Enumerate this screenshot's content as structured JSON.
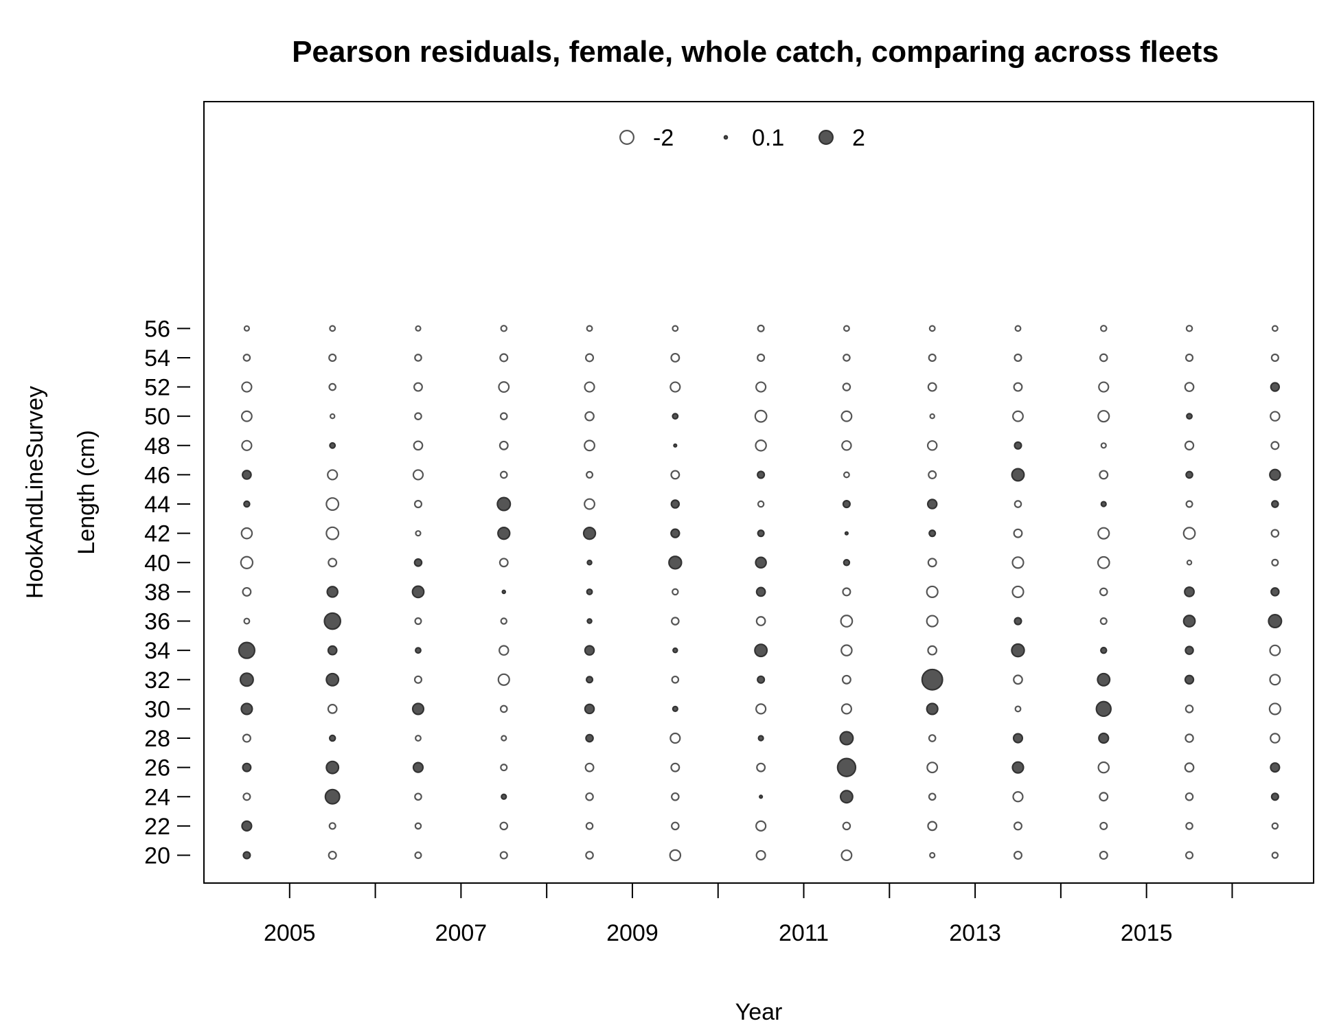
{
  "chart_data": {
    "type": "scatter",
    "title": "Pearson residuals, female, whole catch, comparing across fleets",
    "xlabel": "Year",
    "ylabel_lines": [
      "HookAndLineSurvey",
      "Length (cm)"
    ],
    "x_ticks": [
      2005,
      2006,
      2007,
      2008,
      2009,
      2010,
      2011,
      2012,
      2013,
      2014,
      2015,
      2016
    ],
    "x_tick_labels": [
      2005,
      2007,
      2009,
      2011,
      2013,
      2015
    ],
    "y_ticks": [
      20,
      22,
      24,
      26,
      28,
      30,
      32,
      34,
      36,
      38,
      40,
      42,
      44,
      46,
      48,
      50,
      52,
      54,
      56
    ],
    "xlim": [
      2004,
      2016.95
    ],
    "ylim": [
      18.1,
      71.5
    ],
    "legend": {
      "placement": "top-center",
      "entries": [
        {
          "label": "-2",
          "value": -2
        },
        {
          "label": "0.1",
          "value": 0.1
        },
        {
          "label": "2",
          "value": 2
        }
      ]
    },
    "colors": {
      "negative_fill": "#ffffff",
      "negative_stroke": "#555555",
      "positive_fill": "#555555",
      "positive_stroke": "#333333"
    },
    "size_scale": "bubble area proportional to |residual|",
    "series": [
      {
        "x": 2004.5,
        "lengths": [
          20,
          22,
          24,
          26,
          28,
          30,
          32,
          34,
          36,
          38,
          40,
          42,
          44,
          46,
          48,
          50,
          52,
          54,
          56
        ],
        "residuals": [
          0.5,
          1.0,
          -0.5,
          0.7,
          -0.6,
          1.3,
          1.8,
          2.7,
          -0.3,
          -0.7,
          -1.5,
          -1.2,
          0.35,
          0.8,
          -1.0,
          -1.1,
          -1.0,
          -0.45,
          -0.25
        ]
      },
      {
        "x": 2005.5,
        "lengths": [
          20,
          22,
          24,
          26,
          28,
          30,
          32,
          34,
          36,
          38,
          40,
          42,
          44,
          46,
          48,
          50,
          52,
          54,
          56
        ],
        "residuals": [
          -0.6,
          -0.4,
          2.2,
          1.6,
          0.35,
          -0.8,
          1.6,
          0.8,
          2.8,
          1.2,
          -0.7,
          -1.6,
          -1.6,
          -1.0,
          0.3,
          -0.2,
          -0.45,
          -0.5,
          -0.3
        ]
      },
      {
        "x": 2006.5,
        "lengths": [
          20,
          22,
          24,
          26,
          28,
          30,
          32,
          34,
          36,
          38,
          40,
          42,
          44,
          46,
          48,
          50,
          52,
          54,
          56
        ],
        "residuals": [
          -0.4,
          -0.35,
          -0.45,
          1.0,
          -0.3,
          1.3,
          -0.5,
          0.3,
          -0.4,
          1.4,
          0.55,
          -0.25,
          -0.5,
          -1.0,
          -0.8,
          -0.45,
          -0.7,
          -0.45,
          -0.25
        ]
      },
      {
        "x": 2007.5,
        "lengths": [
          20,
          22,
          24,
          26,
          28,
          30,
          32,
          34,
          36,
          38,
          40,
          42,
          44,
          46,
          48,
          50,
          52,
          54,
          56
        ],
        "residuals": [
          -0.5,
          -0.55,
          0.25,
          -0.4,
          -0.25,
          -0.45,
          -1.3,
          -0.9,
          -0.35,
          0.1,
          -0.7,
          1.5,
          1.8,
          -0.45,
          -0.7,
          -0.45,
          -1.1,
          -0.6,
          -0.35
        ]
      },
      {
        "x": 2008.5,
        "lengths": [
          20,
          22,
          24,
          26,
          28,
          30,
          32,
          34,
          36,
          38,
          40,
          42,
          44,
          46,
          48,
          50,
          52,
          54,
          56
        ],
        "residuals": [
          -0.55,
          -0.45,
          -0.55,
          -0.7,
          0.55,
          0.9,
          0.4,
          0.9,
          0.2,
          0.3,
          0.2,
          1.5,
          -1.1,
          -0.4,
          -1.1,
          -0.8,
          -1.0,
          -0.6,
          -0.3
        ]
      },
      {
        "x": 2009.5,
        "lengths": [
          20,
          22,
          24,
          26,
          28,
          30,
          32,
          34,
          36,
          38,
          40,
          42,
          44,
          46,
          48,
          50,
          52,
          54,
          56
        ],
        "residuals": [
          -1.2,
          -0.55,
          -0.55,
          -0.7,
          -1.0,
          0.25,
          -0.45,
          0.2,
          -0.55,
          -0.35,
          1.7,
          0.75,
          0.65,
          -0.7,
          0.08,
          0.3,
          -1.0,
          -0.7,
          -0.3
        ]
      },
      {
        "x": 2010.5,
        "lengths": [
          20,
          22,
          24,
          26,
          28,
          30,
          32,
          34,
          36,
          38,
          40,
          42,
          44,
          46,
          48,
          50,
          52,
          54,
          56
        ],
        "residuals": [
          -0.85,
          -1.0,
          0.08,
          -0.7,
          0.25,
          -1.0,
          0.5,
          1.6,
          -0.8,
          0.8,
          1.2,
          0.4,
          -0.35,
          0.5,
          -1.2,
          -1.4,
          -1.0,
          -0.5,
          -0.4
        ]
      },
      {
        "x": 2011.5,
        "lengths": [
          20,
          22,
          24,
          26,
          28,
          30,
          32,
          34,
          36,
          38,
          40,
          42,
          44,
          46,
          48,
          50,
          52,
          54,
          56
        ],
        "residuals": [
          -1.1,
          -0.55,
          1.6,
          3.5,
          1.8,
          -1.0,
          -0.7,
          -1.2,
          -1.4,
          -0.6,
          0.35,
          0.08,
          0.5,
          -0.3,
          -0.9,
          -1.1,
          -0.55,
          -0.45,
          -0.3
        ]
      },
      {
        "x": 2012.5,
        "lengths": [
          20,
          22,
          24,
          26,
          28,
          30,
          32,
          34,
          36,
          38,
          40,
          42,
          44,
          46,
          48,
          50,
          52,
          54,
          56
        ],
        "residuals": [
          -0.25,
          -0.8,
          -0.45,
          -1.1,
          -0.45,
          1.3,
          4.5,
          -0.8,
          -1.3,
          -1.3,
          -0.7,
          0.4,
          0.9,
          -0.6,
          -0.9,
          -0.2,
          -0.7,
          -0.5,
          -0.3
        ]
      },
      {
        "x": 2013.5,
        "lengths": [
          20,
          22,
          24,
          26,
          28,
          30,
          32,
          34,
          36,
          38,
          40,
          42,
          44,
          46,
          48,
          50,
          52,
          54,
          56
        ],
        "residuals": [
          -0.6,
          -0.6,
          -1.0,
          1.3,
          0.85,
          -0.3,
          -0.8,
          1.7,
          0.5,
          -1.3,
          -1.3,
          -0.7,
          -0.45,
          1.6,
          0.5,
          -1.1,
          -0.7,
          -0.5,
          -0.3
        ]
      },
      {
        "x": 2014.5,
        "lengths": [
          20,
          22,
          24,
          26,
          28,
          30,
          32,
          34,
          36,
          38,
          40,
          42,
          44,
          46,
          48,
          50,
          52,
          54,
          56
        ],
        "residuals": [
          -0.6,
          -0.5,
          -0.7,
          -1.2,
          1.0,
          2.3,
          1.6,
          0.35,
          -0.4,
          -0.55,
          -1.4,
          -1.3,
          0.25,
          -0.7,
          -0.25,
          -1.3,
          -1.0,
          -0.55,
          -0.35
        ]
      },
      {
        "x": 2015.5,
        "lengths": [
          20,
          22,
          24,
          26,
          28,
          30,
          32,
          34,
          36,
          38,
          40,
          42,
          44,
          46,
          48,
          50,
          52,
          54,
          56
        ],
        "residuals": [
          -0.5,
          -0.45,
          -0.55,
          -0.8,
          -0.65,
          -0.55,
          0.75,
          0.65,
          1.4,
          0.95,
          -0.2,
          -1.4,
          -0.4,
          0.45,
          -0.75,
          0.3,
          -0.8,
          -0.5,
          -0.35
        ]
      },
      {
        "x": 2016.5,
        "lengths": [
          20,
          22,
          24,
          26,
          28,
          30,
          32,
          34,
          36,
          38,
          40,
          42,
          44,
          46,
          48,
          50,
          52,
          54,
          56
        ],
        "residuals": [
          -0.35,
          -0.35,
          0.5,
          0.85,
          -0.9,
          -1.3,
          -1.1,
          -1.1,
          1.8,
          0.65,
          -0.4,
          -0.55,
          0.45,
          1.2,
          -0.6,
          -0.9,
          0.75,
          -0.5,
          -0.3
        ]
      }
    ]
  }
}
